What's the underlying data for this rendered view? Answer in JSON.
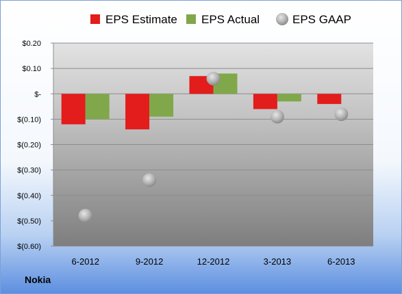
{
  "company": "Nokia",
  "chart_data": {
    "type": "bar",
    "categories": [
      "6-2012",
      "9-2012",
      "12-2012",
      "3-2013",
      "6-2013"
    ],
    "series": [
      {
        "name": "EPS Estimate",
        "values": [
          -0.12,
          -0.14,
          0.07,
          -0.06,
          -0.04
        ],
        "color": "#e31c1c",
        "kind": "bar"
      },
      {
        "name": "EPS Actual",
        "values": [
          -0.1,
          -0.09,
          0.08,
          -0.03,
          0.0
        ],
        "color": "#80a84a",
        "kind": "bar"
      },
      {
        "name": "EPS GAAP",
        "values": [
          -0.48,
          -0.34,
          0.06,
          -0.09,
          -0.08
        ],
        "color": "#b3b3b3",
        "kind": "marker"
      }
    ],
    "ylim": [
      -0.6,
      0.2
    ],
    "yticks": [
      0.2,
      0.1,
      0.0,
      -0.1,
      -0.2,
      -0.3,
      -0.4,
      -0.5,
      -0.6
    ],
    "ytick_labels": [
      "$0.20",
      "$0.10",
      "$-",
      "$(0.10)",
      "$(0.20)",
      "$(0.30)",
      "$(0.40)",
      "$(0.50)",
      "$(0.60)"
    ],
    "grid": true,
    "legend": "top"
  }
}
